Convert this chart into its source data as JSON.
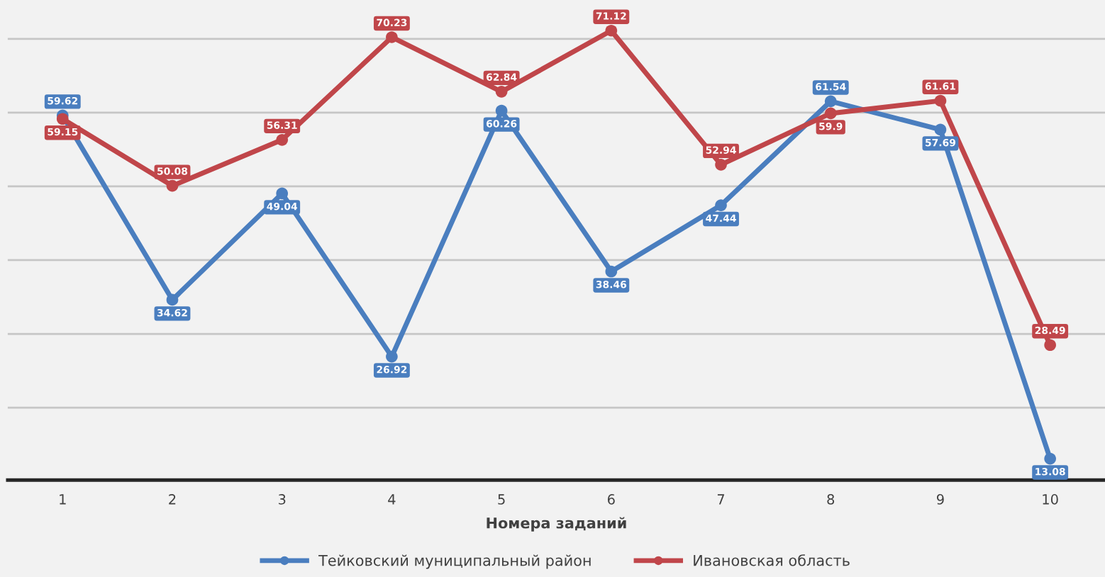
{
  "chart_data": {
    "type": "line",
    "xlabel": "Номера заданий",
    "categories": [
      "1",
      "2",
      "3",
      "4",
      "5",
      "6",
      "7",
      "8",
      "9",
      "10"
    ],
    "series": [
      {
        "name": "Тейковский муниципальный район",
        "color": "#4a7ebf",
        "values": [
          59.62,
          34.62,
          49.04,
          26.92,
          60.26,
          38.46,
          47.44,
          61.54,
          57.69,
          13.08
        ]
      },
      {
        "name": "Ивановская область",
        "color": "#c0464a",
        "values": [
          59.15,
          50.08,
          56.31,
          70.23,
          62.84,
          71.12,
          52.94,
          59.9,
          61.61,
          28.49
        ]
      }
    ],
    "tick_labels": "x",
    "grid": "y",
    "legend": "bottom",
    "marker": "circle",
    "line_style": "solid",
    "data_labels": true
  }
}
